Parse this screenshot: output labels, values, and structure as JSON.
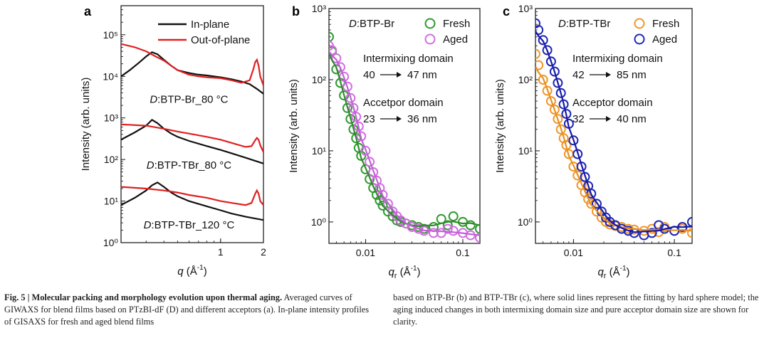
{
  "panels": [
    {
      "letter": "a",
      "chart_data": {
        "type": "line",
        "xscale": "log",
        "yscale": "log",
        "xlim": [
          0.2,
          2
        ],
        "ylim": [
          1,
          500000
        ],
        "xlabel_main": "q",
        "xlabel_unit": "(Å",
        "xlabel_exp": "-1",
        "xlabel_end": ")",
        "ylabel": "Intensity (arb. units)",
        "yticks": [
          1,
          10,
          100,
          1000,
          10000,
          100000
        ],
        "ytick_labels": [
          "10⁰",
          "10¹",
          "10²",
          "10³",
          "10⁴",
          "10⁵"
        ],
        "xticks": [
          1,
          2
        ],
        "xtick_labels": [
          "1",
          "2"
        ],
        "legend": [
          {
            "name": "In-plane",
            "color": "#111111"
          },
          {
            "name": "Out-of-plane",
            "color": "#e02020"
          }
        ],
        "series": [
          {
            "group": "D:BTP-Br_80 °C",
            "name": "In-plane",
            "color": "#111111",
            "x": [
              0.2,
              0.23,
              0.27,
              0.3,
              0.33,
              0.36,
              0.4,
              0.45,
              0.5,
              0.6,
              0.7,
              0.8,
              1.0,
              1.2,
              1.4,
              1.6,
              1.8,
              2.0
            ],
            "y": [
              10000,
              14000,
              22000,
              30000,
              38000,
              34000,
              25000,
              18000,
              14000,
              12000,
              11000,
              10500,
              9500,
              8500,
              7500,
              6500,
              5000,
              3800
            ]
          },
          {
            "group": "D:BTP-Br_80 °C",
            "name": "Out-of-plane",
            "color": "#e02020",
            "x": [
              0.2,
              0.25,
              0.3,
              0.35,
              0.4,
              0.45,
              0.5,
              0.6,
              0.7,
              0.8,
              1.0,
              1.2,
              1.4,
              1.6,
              1.7,
              1.75,
              1.8,
              1.85,
              1.9,
              2.0
            ],
            "y": [
              60000,
              50000,
              40000,
              30000,
              24000,
              18000,
              14000,
              11000,
              10000,
              9500,
              9000,
              8000,
              7000,
              8000,
              15000,
              22000,
              25000,
              18000,
              10000,
              6000
            ]
          },
          {
            "group": "D:BTP-TBr_80 °C",
            "name": "In-plane",
            "color": "#111111",
            "x": [
              0.2,
              0.25,
              0.3,
              0.33,
              0.36,
              0.4,
              0.45,
              0.5,
              0.6,
              0.8,
              1.0,
              1.2,
              1.5,
              2.0
            ],
            "y": [
              300,
              450,
              650,
              900,
              750,
              550,
              420,
              350,
              280,
              210,
              170,
              140,
              110,
              80
            ]
          },
          {
            "group": "D:BTP-TBr_80 °C",
            "name": "Out-of-plane",
            "color": "#e02020",
            "x": [
              0.2,
              0.3,
              0.4,
              0.5,
              0.6,
              0.8,
              1.0,
              1.2,
              1.5,
              1.65,
              1.75,
              1.8,
              1.85,
              1.9,
              2.0
            ],
            "y": [
              700,
              650,
              550,
              470,
              420,
              350,
              300,
              250,
              200,
              210,
              290,
              330,
              300,
              220,
              150
            ]
          },
          {
            "group": "D:BTP-TBr_120 °C",
            "name": "In-plane",
            "color": "#111111",
            "x": [
              0.2,
              0.25,
              0.3,
              0.33,
              0.36,
              0.4,
              0.45,
              0.5,
              0.6,
              0.8,
              1.0,
              1.2,
              1.5,
              2.0
            ],
            "y": [
              8,
              12,
              18,
              24,
              28,
              22,
              16,
              13,
              10,
              7.5,
              6,
              5,
              4.2,
              3.5
            ]
          },
          {
            "group": "D:BTP-TBr_120 °C",
            "name": "Out-of-plane",
            "color": "#e02020",
            "x": [
              0.2,
              0.3,
              0.4,
              0.5,
              0.6,
              0.8,
              1.0,
              1.2,
              1.5,
              1.65,
              1.75,
              1.8,
              1.85,
              1.9,
              2.0
            ],
            "y": [
              22,
              20,
              18,
              16,
              14,
              12,
              10,
              9,
              8,
              9,
              15,
              18,
              15,
              10,
              8
            ]
          }
        ],
        "annotations": [
          {
            "italic": "D",
            "text": ":BTP-Br_80 °C",
            "x": 0.6,
            "y": 2300
          },
          {
            "italic": "D",
            "text": ":BTP-TBr_80 °C",
            "x": 0.6,
            "y": 60
          },
          {
            "italic": "D",
            "text": ":BTP-TBr_120 °C",
            "x": 0.6,
            "y": 2.2
          }
        ]
      }
    },
    {
      "letter": "b",
      "chart_data": {
        "type": "scatter",
        "xscale": "log",
        "yscale": "log",
        "xlim": [
          0.0042,
          0.15
        ],
        "ylim": [
          0.5,
          1000
        ],
        "xlabel_main": "q",
        "xlabel_sub": "r",
        "xlabel_unit": "(Å",
        "xlabel_exp": "-1",
        "xlabel_end": ")",
        "ylabel": "Intensity (arb. units)",
        "yticks": [
          1,
          10,
          100,
          1000
        ],
        "ytick_labels": [
          "10⁰",
          "10¹",
          "10²",
          "10³"
        ],
        "xticks": [
          0.01,
          0.1
        ],
        "xtick_labels": [
          "0.01",
          "0.1"
        ],
        "header": {
          "italic": "D",
          "text": ":BTP-Br"
        },
        "legend": [
          {
            "name": "Fresh",
            "color": "#2e9a2e"
          },
          {
            "name": "Aged",
            "color": "#d26ee0"
          }
        ],
        "series": [
          {
            "name": "Fresh",
            "color": "#2e9a2e",
            "fit_color": "#2e8b2e",
            "x": [
              0.0042,
              0.0045,
              0.005,
              0.0055,
              0.006,
              0.0065,
              0.007,
              0.0075,
              0.008,
              0.0085,
              0.009,
              0.01,
              0.011,
              0.012,
              0.013,
              0.014,
              0.015,
              0.017,
              0.019,
              0.021,
              0.023,
              0.026,
              0.03,
              0.035,
              0.04,
              0.05,
              0.06,
              0.07,
              0.08,
              0.1,
              0.12,
              0.15
            ],
            "y": [
              400,
              250,
              140,
              90,
              60,
              40,
              28,
              20,
              15,
              11,
              8.5,
              5.5,
              4,
              3,
              2.4,
              2,
              1.7,
              1.4,
              1.2,
              1.05,
              1.0,
              0.95,
              0.9,
              0.85,
              0.8,
              0.85,
              1.1,
              0.9,
              1.2,
              1.0,
              0.9,
              0.8
            ]
          },
          {
            "name": "Aged",
            "color": "#d26ee0",
            "fit_color": "#c060d8",
            "x": [
              0.0042,
              0.0045,
              0.005,
              0.0055,
              0.006,
              0.0065,
              0.007,
              0.0075,
              0.008,
              0.0085,
              0.009,
              0.01,
              0.011,
              0.012,
              0.013,
              0.014,
              0.015,
              0.017,
              0.019,
              0.021,
              0.023,
              0.026,
              0.03,
              0.035,
              0.04,
              0.05,
              0.06,
              0.07,
              0.08,
              0.1,
              0.12,
              0.15
            ],
            "y": [
              300,
              260,
              200,
              150,
              110,
              80,
              55,
              40,
              30,
              22,
              16,
              10,
              7,
              5,
              3.8,
              3,
              2.4,
              1.8,
              1.4,
              1.2,
              1.05,
              0.95,
              0.85,
              0.8,
              0.75,
              0.7,
              0.7,
              0.8,
              0.75,
              0.7,
              0.65,
              0.6
            ]
          }
        ],
        "annotations": [
          {
            "line1": "Intermixing domain",
            "from": "40",
            "to": "47 nm"
          },
          {
            "line1": "Accetpor domain",
            "from": "23",
            "to": "36 nm"
          }
        ]
      }
    },
    {
      "letter": "c",
      "chart_data": {
        "type": "scatter",
        "xscale": "log",
        "yscale": "log",
        "xlim": [
          0.0042,
          0.15
        ],
        "ylim": [
          0.5,
          1000
        ],
        "xlabel_main": "q",
        "xlabel_sub": "r",
        "xlabel_unit": "(Å",
        "xlabel_exp": "-1",
        "xlabel_end": ")",
        "ylabel": "Intensity (arb. units)",
        "yticks": [
          1,
          10,
          100,
          1000
        ],
        "ytick_labels": [
          "10⁰",
          "10¹",
          "10²",
          "10³"
        ],
        "xticks": [
          0.01,
          0.1
        ],
        "xtick_labels": [
          "0.01",
          "0.1"
        ],
        "header": {
          "italic": "D",
          "text": ":BTP-TBr"
        },
        "legend": [
          {
            "name": "Fresh",
            "color": "#f0962a"
          },
          {
            "name": "Aged",
            "color": "#1e28b4"
          }
        ],
        "series": [
          {
            "name": "Fresh",
            "color": "#f0962a",
            "fit_color": "#e8901e",
            "x": [
              0.0042,
              0.0045,
              0.005,
              0.0055,
              0.006,
              0.0065,
              0.007,
              0.0075,
              0.008,
              0.0085,
              0.009,
              0.01,
              0.011,
              0.012,
              0.013,
              0.014,
              0.015,
              0.017,
              0.019,
              0.021,
              0.023,
              0.026,
              0.03,
              0.035,
              0.04,
              0.05,
              0.06,
              0.07,
              0.08,
              0.1,
              0.12,
              0.15
            ],
            "y": [
              230,
              160,
              100,
              70,
              50,
              38,
              28,
              20,
              15,
              12,
              9,
              6,
              4.5,
              3.3,
              2.6,
              2.1,
              1.8,
              1.4,
              1.15,
              1.0,
              0.92,
              0.88,
              0.85,
              0.8,
              0.78,
              0.75,
              0.8,
              0.72,
              0.85,
              0.75,
              0.8,
              0.7
            ]
          },
          {
            "name": "Aged",
            "color": "#1e28b4",
            "fit_color": "#1818a8",
            "x": [
              0.0042,
              0.0045,
              0.005,
              0.0055,
              0.006,
              0.0065,
              0.007,
              0.0075,
              0.008,
              0.0085,
              0.009,
              0.01,
              0.011,
              0.012,
              0.013,
              0.014,
              0.015,
              0.017,
              0.019,
              0.021,
              0.023,
              0.026,
              0.03,
              0.035,
              0.04,
              0.05,
              0.06,
              0.07,
              0.08,
              0.1,
              0.12,
              0.15
            ],
            "y": [
              620,
              500,
              360,
              260,
              180,
              130,
              90,
              65,
              45,
              33,
              24,
              14,
              9,
              6,
              4.3,
              3.2,
              2.5,
              1.8,
              1.4,
              1.15,
              1.0,
              0.9,
              0.8,
              0.75,
              0.7,
              0.65,
              0.7,
              0.9,
              0.8,
              0.75,
              0.85,
              1.0
            ]
          }
        ],
        "annotations": [
          {
            "line1": "Intermixing domain",
            "from": "42",
            "to": "85 nm"
          },
          {
            "line1": "Acceptor domain",
            "from": "32",
            "to": "40 nm"
          }
        ]
      }
    }
  ],
  "caption": {
    "fig_label": "Fig. 5 | Molecular packing and morphology evolution upon thermal aging.",
    "left_rest": "Averaged curves of GIWAXS for blend films based on PTzBI-dF (D) and different acceptors (a). In-plane intensity profiles of GISAXS for fresh and aged blend films",
    "right_text": "based on BTP-Br (b) and BTP-TBr (c), where solid lines represent the fitting by hard sphere model; the aging induced changes in both intermixing domain size and pure acceptor domain size are shown for clarity."
  }
}
